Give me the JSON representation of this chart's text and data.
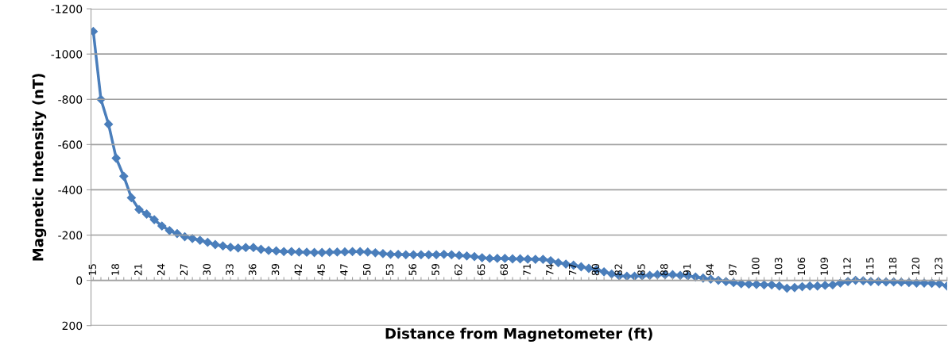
{
  "chart_data": {
    "type": "line",
    "xlabel": "Distance from Magnetometer (ft)",
    "ylabel": "Magnetic Intensity (nT)",
    "categories": [
      "15",
      null,
      null,
      "18",
      null,
      null,
      "21",
      null,
      null,
      "24",
      null,
      null,
      "27",
      null,
      null,
      "30",
      null,
      null,
      "33",
      null,
      null,
      "36",
      null,
      null,
      "39",
      null,
      null,
      "42",
      null,
      null,
      "45",
      null,
      null,
      "47",
      null,
      null,
      "50",
      null,
      null,
      "53",
      null,
      null,
      "56",
      null,
      null,
      "59",
      null,
      null,
      "62",
      null,
      null,
      "65",
      null,
      null,
      "68",
      null,
      null,
      "71",
      null,
      null,
      "74",
      null,
      null,
      "77",
      null,
      null,
      "80",
      null,
      null,
      "82",
      null,
      null,
      "85",
      null,
      null,
      "88",
      null,
      null,
      "91",
      null,
      null,
      "94",
      null,
      null,
      "97",
      null,
      null,
      "100",
      null,
      null,
      "103",
      null,
      null,
      "106",
      null,
      null,
      "109",
      null,
      null,
      "112",
      null,
      null,
      "115",
      null,
      null,
      "118",
      null,
      null,
      "120",
      null,
      null,
      "123",
      null
    ],
    "series": [
      {
        "color": "#4a7ebb",
        "values": [
          -1100,
          -800,
          -690,
          -540,
          -460,
          -365,
          -313,
          -293,
          -268,
          -240,
          -220,
          -207,
          -193,
          -185,
          -177,
          -168,
          -158,
          -152,
          -146,
          -143,
          -145,
          -145,
          -137,
          -132,
          -130,
          -127,
          -127,
          -125,
          -124,
          -123,
          -123,
          -124,
          -125,
          -126,
          -127,
          -127,
          -125,
          -122,
          -118,
          -115,
          -115,
          -113,
          -113,
          -113,
          -113,
          -113,
          -115,
          -113,
          -110,
          -108,
          -105,
          -100,
          -97,
          -97,
          -97,
          -95,
          -95,
          -94,
          -93,
          -93,
          -87,
          -78,
          -72,
          -67,
          -60,
          -53,
          -47,
          -38,
          -28,
          -20,
          -18,
          -18,
          -20,
          -22,
          -25,
          -25,
          -25,
          -22,
          -20,
          -15,
          -10,
          -5,
          0,
          5,
          10,
          15,
          17,
          18,
          20,
          20,
          25,
          35,
          32,
          28,
          25,
          25,
          22,
          20,
          12,
          5,
          0,
          2,
          5,
          5,
          7,
          7,
          8,
          10,
          12,
          12,
          13,
          15,
          25
        ]
      }
    ],
    "ylim": [
      200,
      -1200
    ],
    "yticks": [
      -1200,
      -1000,
      -800,
      -600,
      -400,
      -200,
      0,
      200
    ],
    "grid": "y",
    "marker": "diamond",
    "line_style": "solid"
  }
}
